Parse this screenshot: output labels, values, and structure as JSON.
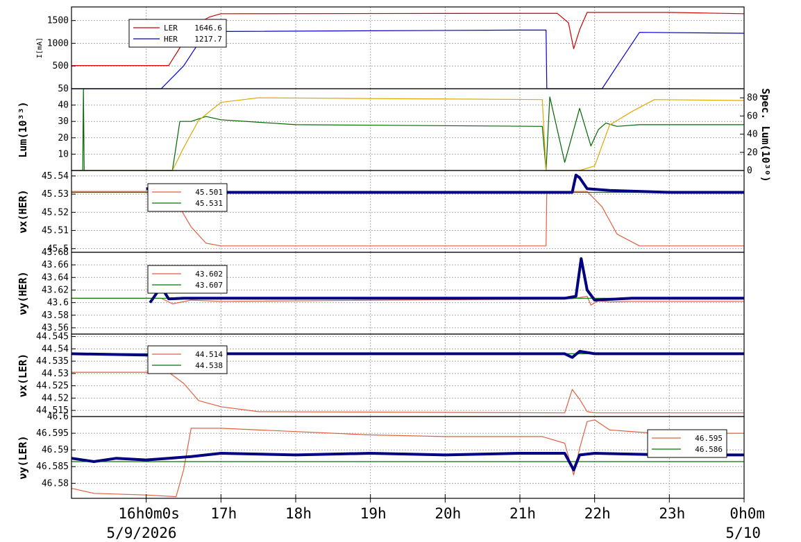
{
  "chart_data": [
    {
      "type": "line",
      "ylabel": "I[mA]",
      "ylim": [
        0,
        1800
      ],
      "yticks": [
        500,
        1000,
        1500
      ],
      "legend": [
        {
          "name": "LER",
          "value": "1646.6",
          "color": "#cc0000"
        },
        {
          "name": "HER",
          "value": "1217.7",
          "color": "#0000cc"
        }
      ],
      "series": [
        {
          "name": "LER",
          "color": "#cc0000",
          "x": [
            15.0,
            16.3,
            16.45,
            16.55,
            16.7,
            16.85,
            17.0,
            21.5,
            21.65,
            21.72,
            21.8,
            21.9,
            23.0,
            24.0
          ],
          "y": [
            510,
            510,
            900,
            1200,
            1450,
            1580,
            1650,
            1660,
            1450,
            880,
            1300,
            1680,
            1680,
            1650
          ]
        },
        {
          "name": "HER",
          "color": "#0000cc",
          "x": [
            15.0,
            16.2,
            16.5,
            16.7,
            17.0,
            21.0,
            21.35,
            21.36,
            22.1,
            22.3,
            22.6,
            24.0
          ],
          "y": [
            0,
            0,
            500,
            1000,
            1260,
            1290,
            1290,
            0,
            0,
            500,
            1240,
            1220
          ]
        }
      ]
    },
    {
      "type": "line",
      "ylabel": "Lum(10³³)",
      "ylabel_right": "Spec. Lum(10³⁰)",
      "ylim": [
        0,
        50
      ],
      "yticks": [
        10,
        20,
        30,
        40,
        50
      ],
      "ylim_right": [
        0,
        90
      ],
      "yticks_right": [
        0,
        20,
        40,
        60,
        80
      ],
      "series": [
        {
          "name": "",
          "color": "#006600",
          "axis": "left",
          "x": [
            15.0,
            15.15,
            15.16,
            15.17,
            16.35,
            16.45,
            16.6,
            16.8,
            17.0,
            18.0,
            21.3,
            21.35,
            21.4,
            21.6,
            21.8,
            21.95,
            22.05,
            22.15,
            22.3,
            22.6,
            24.0
          ],
          "y": [
            0,
            0,
            50,
            0,
            0,
            30,
            30,
            33,
            31,
            28,
            27,
            0,
            45,
            5,
            38,
            15,
            25,
            29,
            27,
            28,
            28
          ]
        },
        {
          "name": "",
          "color": "#e0a800",
          "axis": "right",
          "x": [
            15.0,
            16.35,
            16.5,
            16.7,
            17.0,
            17.5,
            21.3,
            21.35,
            21.8,
            22.0,
            22.2,
            22.5,
            22.8,
            24.0
          ],
          "y": [
            0,
            0,
            25,
            55,
            75,
            80,
            78,
            0,
            0,
            5,
            50,
            65,
            78,
            77
          ]
        }
      ]
    },
    {
      "type": "line",
      "ylabel": "νx(HER)",
      "ylim": [
        45.498,
        45.543
      ],
      "yticks": [
        45.5,
        45.51,
        45.52,
        45.53,
        45.54
      ],
      "legend": [
        {
          "value": "45.501",
          "color": "#e06040"
        },
        {
          "value": "45.531",
          "color": "#007700"
        }
      ],
      "series": [
        {
          "name": "",
          "color": "#e06040",
          "x": [
            15.0,
            16.2,
            16.4,
            16.6,
            16.8,
            17.0,
            21.35,
            21.36,
            21.9,
            22.1,
            22.3,
            22.6,
            24.0
          ],
          "y": [
            45.5315,
            45.5315,
            45.526,
            45.512,
            45.503,
            45.5015,
            45.5015,
            45.5315,
            45.5315,
            45.523,
            45.508,
            45.5015,
            45.5015
          ]
        },
        {
          "name": "",
          "color": "#007700",
          "x": [
            15.0,
            24.0
          ],
          "y": [
            45.531,
            45.531
          ]
        },
        {
          "name": "",
          "color": "#000080",
          "style": "thick",
          "x": [
            16.0,
            16.3,
            17.0,
            18.0,
            19.0,
            20.0,
            21.0,
            21.7,
            21.75,
            21.8,
            21.9,
            22.2,
            23.0,
            24.0
          ],
          "y": [
            45.533,
            45.532,
            45.531,
            45.531,
            45.531,
            45.531,
            45.531,
            45.531,
            45.5405,
            45.539,
            45.533,
            45.532,
            45.531,
            45.531
          ]
        }
      ]
    },
    {
      "type": "line",
      "ylabel": "νy(HER)",
      "ylim": [
        43.55,
        43.68
      ],
      "yticks": [
        43.56,
        43.58,
        43.6,
        43.62,
        43.64,
        43.66,
        43.68
      ],
      "legend": [
        {
          "value": "43.602",
          "color": "#e06040"
        },
        {
          "value": "43.607",
          "color": "#007700"
        }
      ],
      "series": [
        {
          "name": "",
          "color": "#e06040",
          "x": [
            15.0,
            16.2,
            16.35,
            16.6,
            17.0,
            21.7,
            21.9,
            21.95,
            22.05,
            22.2,
            22.5,
            24.0
          ],
          "y": [
            43.607,
            43.607,
            43.598,
            43.604,
            43.602,
            43.606,
            43.61,
            43.596,
            43.603,
            43.601,
            43.602,
            43.602
          ]
        },
        {
          "name": "",
          "color": "#007700",
          "x": [
            15.0,
            24.0
          ],
          "y": [
            43.607,
            43.607
          ]
        },
        {
          "name": "",
          "color": "#000080",
          "style": "thick",
          "x": [
            16.05,
            16.2,
            16.3,
            16.5,
            17.0,
            18.0,
            19.0,
            20.0,
            21.0,
            21.6,
            21.75,
            21.82,
            21.9,
            22.0,
            22.5,
            24.0
          ],
          "y": [
            43.6,
            43.625,
            43.606,
            43.607,
            43.607,
            43.607,
            43.607,
            43.607,
            43.607,
            43.607,
            43.61,
            43.67,
            43.62,
            43.604,
            43.607,
            43.607
          ]
        }
      ]
    },
    {
      "type": "line",
      "ylabel": "νx(LER)",
      "ylim": [
        44.5125,
        44.546
      ],
      "yticks": [
        44.515,
        44.52,
        44.525,
        44.53,
        44.535,
        44.54,
        44.545
      ],
      "legend": [
        {
          "value": "44.514",
          "color": "#e06040"
        },
        {
          "value": "44.538",
          "color": "#007700"
        }
      ],
      "series": [
        {
          "name": "",
          "color": "#e06040",
          "x": [
            15.0,
            16.3,
            16.5,
            16.7,
            17.0,
            17.5,
            21.6,
            21.7,
            21.8,
            21.9,
            22.0,
            24.0
          ],
          "y": [
            44.5305,
            44.5305,
            44.526,
            44.519,
            44.5165,
            44.5145,
            44.514,
            44.5235,
            44.5195,
            44.5145,
            44.514,
            44.514
          ]
        },
        {
          "name": "",
          "color": "#007700",
          "x": [
            15.0,
            24.0
          ],
          "y": [
            44.538,
            44.538
          ]
        },
        {
          "name": "",
          "color": "#000080",
          "style": "thick",
          "x": [
            15.0,
            16.0,
            17.0,
            18.0,
            19.0,
            20.0,
            21.0,
            21.6,
            21.7,
            21.8,
            22.0,
            23.0,
            24.0
          ],
          "y": [
            44.538,
            44.5375,
            44.538,
            44.538,
            44.538,
            44.538,
            44.538,
            44.538,
            44.5365,
            44.539,
            44.538,
            44.538,
            44.538
          ]
        }
      ]
    },
    {
      "type": "line",
      "ylabel": "νy(LER)",
      "ylim": [
        46.5755,
        46.6
      ],
      "yticks": [
        46.58,
        46.585,
        46.59,
        46.595,
        46.6
      ],
      "legend": [
        {
          "value": "46.595",
          "color": "#e06040"
        },
        {
          "value": "46.586",
          "color": "#007700"
        }
      ],
      "series": [
        {
          "name": "",
          "color": "#e06040",
          "x": [
            15.0,
            15.3,
            16.0,
            16.4,
            16.5,
            16.6,
            17.0,
            18.0,
            19.0,
            20.0,
            21.3,
            21.6,
            21.72,
            21.8,
            21.9,
            22.0,
            22.2,
            22.8,
            24.0
          ],
          "y": [
            46.5785,
            46.577,
            46.5765,
            46.576,
            46.584,
            46.5965,
            46.5965,
            46.5955,
            46.5945,
            46.594,
            46.594,
            46.592,
            46.5825,
            46.5905,
            46.5985,
            46.599,
            46.596,
            46.595,
            46.595
          ]
        },
        {
          "name": "",
          "color": "#007700",
          "x": [
            15.0,
            24.0
          ],
          "y": [
            46.5865,
            46.5865
          ]
        },
        {
          "name": "",
          "color": "#000080",
          "style": "thick",
          "x": [
            15.0,
            15.3,
            15.6,
            16.0,
            16.3,
            16.6,
            17.0,
            18.0,
            19.0,
            20.0,
            21.0,
            21.6,
            21.72,
            21.8,
            22.0,
            23.0,
            24.0
          ],
          "y": [
            46.5875,
            46.5865,
            46.5875,
            46.587,
            46.5875,
            46.588,
            46.589,
            46.5885,
            46.589,
            46.5885,
            46.589,
            46.589,
            46.584,
            46.5885,
            46.589,
            46.5885,
            46.5885
          ]
        }
      ]
    }
  ],
  "time_axis": {
    "xlim": [
      15.0,
      24.0
    ],
    "ticks": [
      {
        "x": 16,
        "label": "16h0m0s"
      },
      {
        "x": 17,
        "label": "17h"
      },
      {
        "x": 18,
        "label": "18h"
      },
      {
        "x": 19,
        "label": "19h"
      },
      {
        "x": 20,
        "label": "20h"
      },
      {
        "x": 21,
        "label": "21h"
      },
      {
        "x": 22,
        "label": "22h"
      },
      {
        "x": 23,
        "label": "23h"
      },
      {
        "x": 24,
        "label": "0h0m"
      }
    ],
    "start_date": "5/9/2026",
    "end_date": "5/10"
  }
}
